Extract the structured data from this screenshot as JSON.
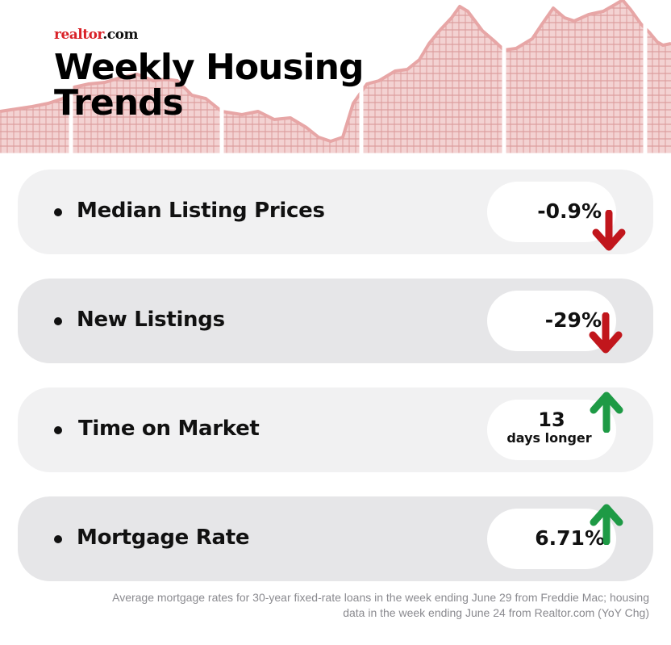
{
  "logo": {
    "brand": "realtor",
    "suffix": ".com"
  },
  "title": {
    "line1": "Weekly Housing",
    "line2": "Trends"
  },
  "metrics": [
    {
      "label": "Median Listing Prices",
      "value": "-0.9%",
      "direction": "down",
      "arrow_color": "#c1161c"
    },
    {
      "label": "New Listings",
      "value": "-29%",
      "direction": "down",
      "arrow_color": "#c1161c"
    },
    {
      "label": "Time on Market",
      "value": "13",
      "value_sub": "days longer",
      "direction": "up",
      "arrow_color": "#1e9a45"
    },
    {
      "label": "Mortgage Rate",
      "value": "6.71%",
      "direction": "up",
      "arrow_color": "#1e9a45"
    }
  ],
  "footnote": {
    "line1": "Average mortgage rates for 30-year fixed-rate loans in the week ending June 29 from Freddie Mac; housing",
    "line2": "data in the week ending June 24 from Realtor.com (YoY Chg)"
  },
  "colors": {
    "background": "#ffffff",
    "skyline": "#e7b9b9",
    "card_light": "#f1f1f2",
    "card_dark": "#e6e6e8",
    "text": "#111111"
  }
}
